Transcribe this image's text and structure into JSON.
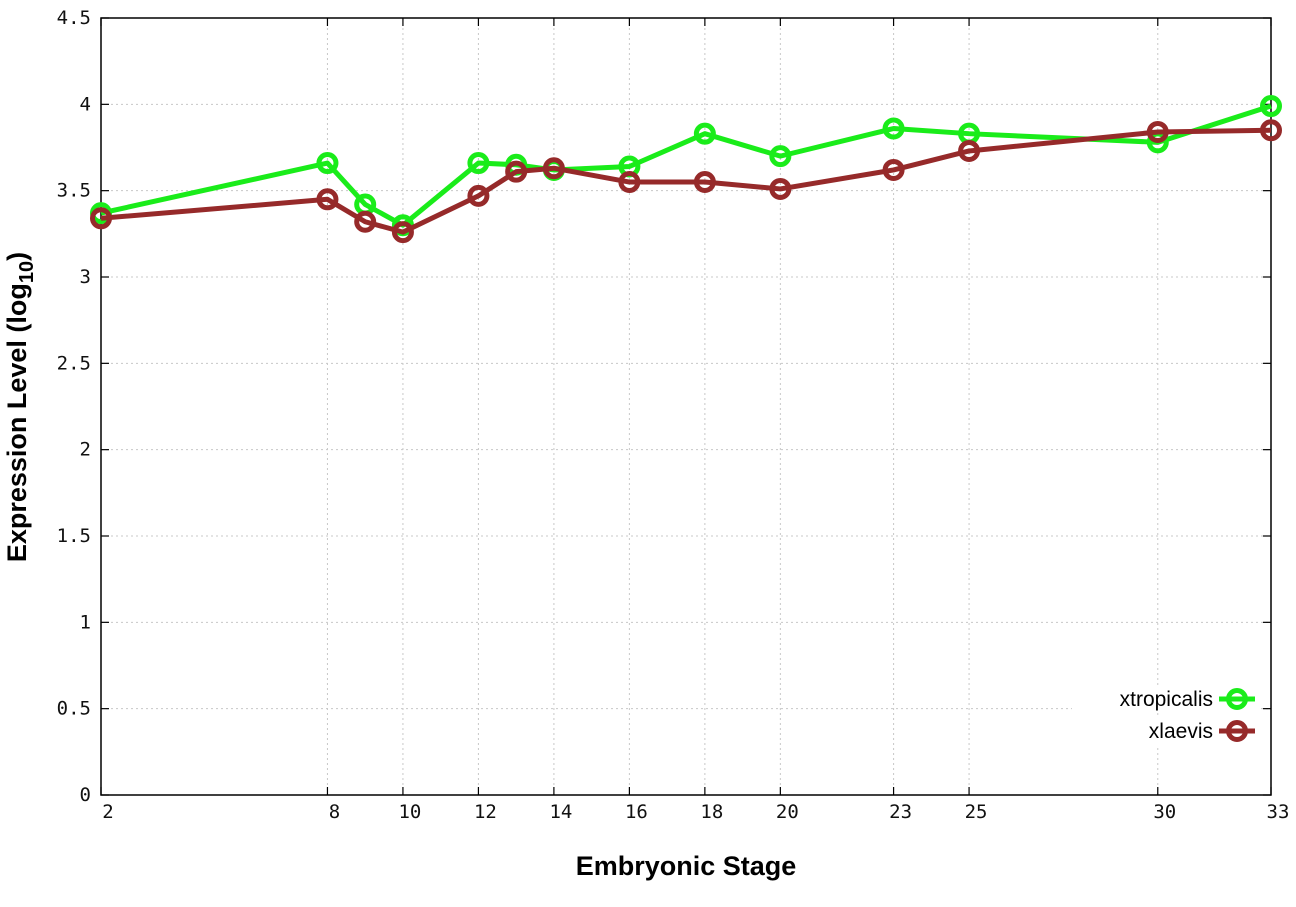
{
  "chart_data": {
    "type": "line",
    "xlabel": "Embryonic Stage",
    "ylabel": {
      "base": "Expression Level (log",
      "sub": "10",
      "close": ")"
    },
    "x": [
      2,
      8,
      9,
      10,
      12,
      13,
      14,
      16,
      18,
      20,
      23,
      25,
      30,
      33
    ],
    "xticks": [
      2,
      8,
      10,
      12,
      14,
      16,
      18,
      20,
      23,
      25,
      30,
      33
    ],
    "yticks": [
      0,
      0.5,
      1,
      1.5,
      2,
      2.5,
      3,
      3.5,
      4,
      4.5
    ],
    "ytick_labels": [
      "0",
      "0.5",
      "1",
      "1.5",
      "2",
      "2.5",
      "3",
      "3.5",
      "4",
      "4.5"
    ],
    "xlim": [
      2,
      33
    ],
    "ylim": [
      0,
      4.5
    ],
    "grid": true,
    "legend_position": "bottom-right",
    "series": [
      {
        "name": "xtropicalis",
        "color": "#1aec1a",
        "values": [
          3.37,
          3.66,
          3.42,
          3.3,
          3.66,
          3.65,
          3.62,
          3.64,
          3.83,
          3.7,
          3.86,
          3.83,
          3.78,
          3.99
        ]
      },
      {
        "name": "xlaevis",
        "color": "#962a2a",
        "values": [
          3.34,
          3.45,
          3.32,
          3.26,
          3.47,
          3.61,
          3.63,
          3.55,
          3.55,
          3.51,
          3.62,
          3.73,
          3.84,
          3.85
        ]
      }
    ]
  }
}
